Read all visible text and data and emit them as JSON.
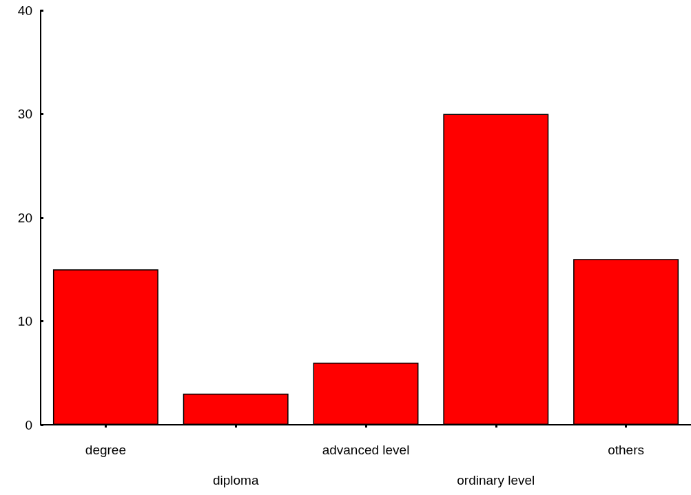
{
  "chart_data": {
    "type": "bar",
    "categories": [
      "degree",
      "diploma",
      "advanced level",
      "ordinary level",
      "others"
    ],
    "values": [
      15,
      3,
      6,
      30,
      16
    ],
    "color": "#ff0000",
    "ylim": [
      0,
      40
    ],
    "yticks": [
      0,
      10,
      20,
      30,
      40
    ]
  }
}
